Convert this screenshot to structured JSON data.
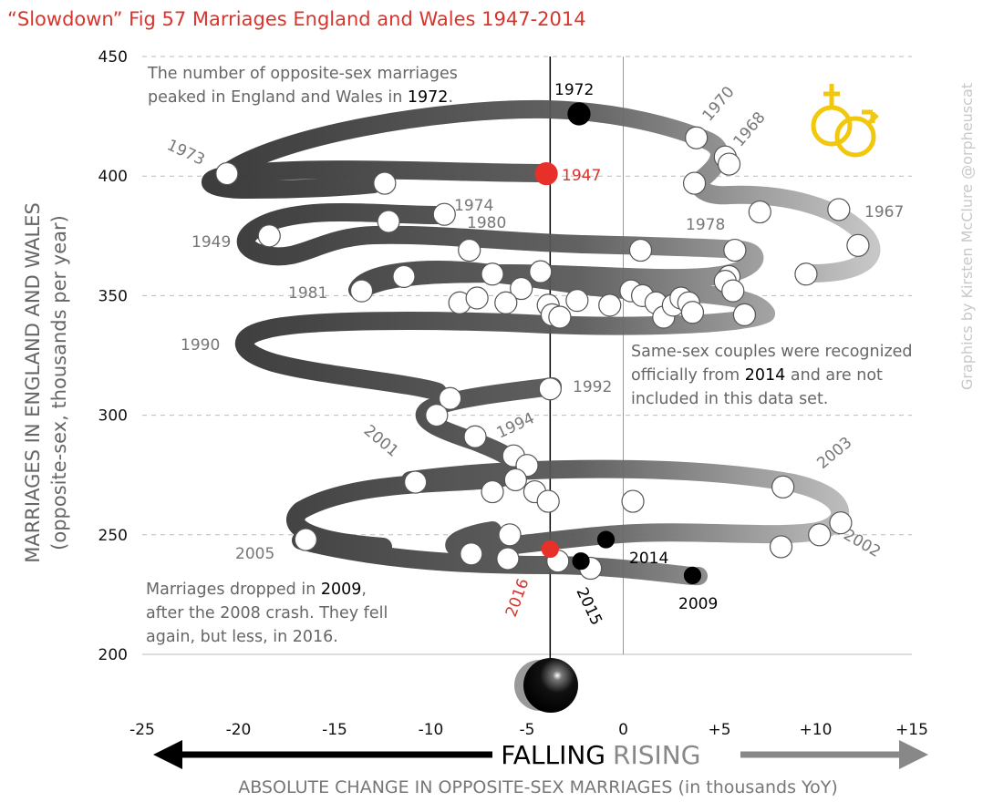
{
  "chart_data": {
    "type": "scatter",
    "title": "“Slowdown” Fig 57 Marriages England and Wales 1947-2014",
    "xlabel": "ABSOLUTE CHANGE IN OPPOSITE-SEX MARRIAGES (in thousands YoY)",
    "ylabel_line1": "MARRIAGES IN ENGLAND AND WALES",
    "ylabel_line2": "(opposite-sex, thousands per year)",
    "xlim": [
      -25,
      15
    ],
    "ylim": [
      200,
      450
    ],
    "x_ticks": [
      "-25",
      "-20",
      "-15",
      "-10",
      "-5",
      "0",
      "+5",
      "+10",
      "+15"
    ],
    "y_ticks": [
      "450",
      "400",
      "350",
      "300",
      "250",
      "200"
    ],
    "grid": "horizontal dashed",
    "x_tick_values": [
      -25,
      -20,
      -15,
      -10,
      -5,
      0,
      5,
      10,
      15
    ],
    "y_tick_values": [
      450,
      400,
      350,
      300,
      250,
      200
    ],
    "points": [
      {
        "x": -4.0,
        "y": 401
      },
      {
        "x": -20.6,
        "y": 401
      },
      {
        "x": -12.4,
        "y": 397
      },
      {
        "x": -18.4,
        "y": 375
      },
      {
        "x": -12.2,
        "y": 381
      },
      {
        "x": -9.3,
        "y": 384
      },
      {
        "x": -8.0,
        "y": 369
      },
      {
        "x": -11.4,
        "y": 358
      },
      {
        "x": -13.6,
        "y": 352
      },
      {
        "x": -6.8,
        "y": 359
      },
      {
        "x": -4.3,
        "y": 360
      },
      {
        "x": -5.3,
        "y": 353
      },
      {
        "x": -8.5,
        "y": 347
      },
      {
        "x": -7.6,
        "y": 349
      },
      {
        "x": -6.1,
        "y": 347
      },
      {
        "x": -3.9,
        "y": 346
      },
      {
        "x": -3.7,
        "y": 342
      },
      {
        "x": -3.3,
        "y": 341
      },
      {
        "x": -2.4,
        "y": 348
      },
      {
        "x": -0.7,
        "y": 346
      },
      {
        "x": 0.4,
        "y": 352
      },
      {
        "x": 1.0,
        "y": 350
      },
      {
        "x": 1.7,
        "y": 347
      },
      {
        "x": 2.1,
        "y": 341
      },
      {
        "x": 2.6,
        "y": 346
      },
      {
        "x": 3.0,
        "y": 349
      },
      {
        "x": 3.4,
        "y": 347
      },
      {
        "x": 3.6,
        "y": 343
      },
      {
        "x": 0.9,
        "y": 369
      },
      {
        "x": 5.8,
        "y": 369
      },
      {
        "x": 5.5,
        "y": 358
      },
      {
        "x": 5.3,
        "y": 356
      },
      {
        "x": 5.7,
        "y": 352
      },
      {
        "x": 6.3,
        "y": 342
      },
      {
        "x": 9.5,
        "y": 359
      },
      {
        "x": 12.2,
        "y": 371
      },
      {
        "x": 11.2,
        "y": 386
      },
      {
        "x": 7.1,
        "y": 385
      },
      {
        "x": 3.7,
        "y": 397
      },
      {
        "x": 5.3,
        "y": 408
      },
      {
        "x": 5.5,
        "y": 405
      },
      {
        "x": 3.8,
        "y": 416
      },
      {
        "x": -2.3,
        "y": 426
      },
      {
        "x": -3.8,
        "y": 311
      },
      {
        "x": -9.0,
        "y": 307
      },
      {
        "x": -9.7,
        "y": 300
      },
      {
        "x": -7.7,
        "y": 291
      },
      {
        "x": -5.7,
        "y": 283
      },
      {
        "x": -5.0,
        "y": 279
      },
      {
        "x": -5.6,
        "y": 273
      },
      {
        "x": -10.8,
        "y": 272
      },
      {
        "x": -6.8,
        "y": 268
      },
      {
        "x": -4.6,
        "y": 268
      },
      {
        "x": -3.9,
        "y": 264
      },
      {
        "x": 0.5,
        "y": 264
      },
      {
        "x": 8.3,
        "y": 270
      },
      {
        "x": 11.3,
        "y": 255
      },
      {
        "x": 10.2,
        "y": 250
      },
      {
        "x": 8.2,
        "y": 245
      },
      {
        "x": -16.5,
        "y": 248
      },
      {
        "x": -7.9,
        "y": 242
      },
      {
        "x": -6.0,
        "y": 240
      },
      {
        "x": -5.9,
        "y": 250
      },
      {
        "x": -3.4,
        "y": 239
      },
      {
        "x": -1.7,
        "y": 236
      },
      {
        "x": -2.2,
        "y": 239
      },
      {
        "x": -0.9,
        "y": 248
      },
      {
        "x": 3.6,
        "y": 233
      },
      {
        "x": -3.8,
        "y": 244
      }
    ],
    "year_labels": [
      "1947",
      "1972",
      "1973",
      "1974",
      "1949",
      "1980",
      "1981",
      "1990",
      "1978",
      "1970",
      "1968",
      "1967",
      "1992",
      "1994",
      "2001",
      "2005",
      "2003",
      "2002",
      "2014",
      "2009",
      "2015",
      "2016"
    ],
    "annotations": [
      "The number of opposite-sex marriages",
      "peaked in England and Wales in",
      "1972",
      "Same-sex couples were recognized",
      "officially from",
      "2014",
      "and are not",
      "included in this data set.",
      "Marriages dropped in",
      "2009",
      "after the 2008 crash. They fell",
      "again, but less, in 2016."
    ],
    "direction_left": "FALLING",
    "direction_right": "RISING",
    "credit": "Graphics by Kirsten McClure @orpheuscat",
    "colors": {
      "title": "#d9342b",
      "highlight": "#d9342b",
      "dark_path": "#3a3a3a",
      "light_path": "#b8b8b8",
      "symbol": "#f2c80f"
    }
  }
}
